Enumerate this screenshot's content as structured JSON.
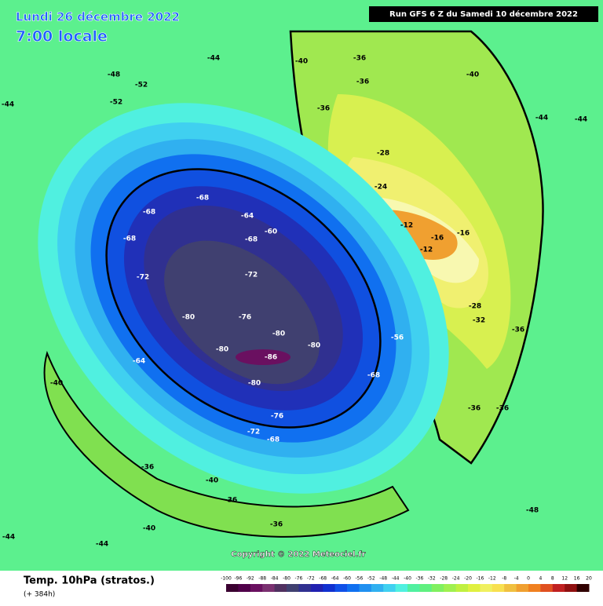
{
  "header": {
    "date": "Lundi 26 décembre 2022",
    "time": "7:00 locale",
    "run": "Run GFS 6 Z du Samedi 10 décembre 2022"
  },
  "footer": {
    "title": "Temp. 10hPa (stratos.)",
    "lead": "(+ 384h)",
    "copyright": "Copyright © 2022 Meteociel.fr"
  },
  "legend": {
    "labels": [
      -100,
      -96,
      -92,
      -88,
      -84,
      -80,
      -76,
      -72,
      -68,
      -64,
      -60,
      -56,
      -52,
      -48,
      -44,
      -40,
      -36,
      -32,
      -28,
      -24,
      -20,
      -16,
      -12,
      -8,
      -4,
      0,
      4,
      8,
      12,
      16,
      20
    ],
    "colors": [
      "#3a0030",
      "#50004a",
      "#6a1060",
      "#7a3070",
      "#503060",
      "#404070",
      "#303090",
      "#2020b0",
      "#1030d0",
      "#1050e8",
      "#1070f0",
      "#2090f0",
      "#30b0f0",
      "#40d0f0",
      "#50f0e0",
      "#50f0a0",
      "#60f080",
      "#80f060",
      "#a0f050",
      "#c0f040",
      "#e0f040",
      "#f0f060",
      "#f8e050",
      "#f0c040",
      "#f0a030",
      "#f08020",
      "#e05020",
      "#c02020",
      "#901010",
      "#300000"
    ]
  },
  "map_labels": [
    -44,
    -48,
    -52,
    -52,
    -44,
    -36,
    -36,
    -40,
    -36,
    -40,
    -44,
    -44,
    -28,
    -24,
    -12,
    -16,
    -12,
    -16,
    -68,
    -68,
    -64,
    -60,
    -68,
    -68,
    -72,
    -72,
    -80,
    -76,
    -80,
    -80,
    -86,
    -80,
    -64,
    -80,
    -76,
    -72,
    -68,
    -68,
    -56,
    -40,
    -36,
    -40,
    -36,
    -36,
    -40,
    -36,
    -36,
    -48,
    -44,
    -44,
    -36,
    -32,
    -28
  ]
}
